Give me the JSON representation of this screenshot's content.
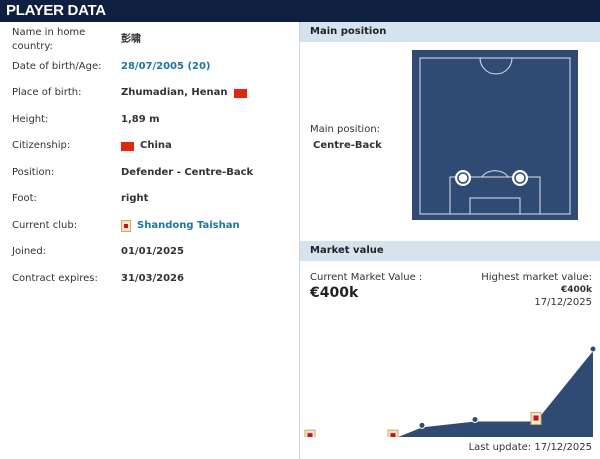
{
  "header": {
    "title": "PLAYER DATA"
  },
  "details": [
    {
      "label": "Name in home country:",
      "value": "彭啸"
    },
    {
      "label": "Date of birth/Age:",
      "value": "28/07/2005 (20)",
      "link": true
    },
    {
      "label": "Place of birth:",
      "value": "Zhumadian, Henan",
      "flag_after": "china-flag"
    },
    {
      "label": "Height:",
      "value": "1,89 m"
    },
    {
      "label": "Citizenship:",
      "value": "China",
      "flag_before": "china-flag"
    },
    {
      "label": "Position:",
      "value": "Defender - Centre-Back"
    },
    {
      "label": "Foot:",
      "value": "right"
    },
    {
      "label": "Current club:",
      "value": "Shandong Taishan",
      "link": true,
      "icon": "club-crest-icon"
    },
    {
      "label": "Joined:",
      "value": "01/01/2025"
    },
    {
      "label": "Contract expires:",
      "value": "31/03/2026"
    }
  ],
  "main_position": {
    "section_title": "Main position",
    "label": "Main position:",
    "value": "Centre-Back"
  },
  "market_value": {
    "section_title": "Market value",
    "current_label": "Current Market Value :",
    "current_value": "€400k",
    "highest_label": "Highest market value:",
    "highest_value": "€400k",
    "highest_date": "17/12/2025",
    "last_update": "Last update: 17/12/2025"
  },
  "colors": {
    "header": "#0e1f3f",
    "pitch": "#2f4a73",
    "section": "#d5e3ee",
    "link": "#1d75a3"
  },
  "chart_data": {
    "type": "area",
    "values_k_eur": [
      25,
      25,
      75,
      100,
      100,
      400
    ],
    "markers": [
      "club-crest",
      "club-crest",
      "dot",
      "dot",
      "club-crest",
      "dot"
    ],
    "ylim": [
      0,
      400
    ]
  }
}
